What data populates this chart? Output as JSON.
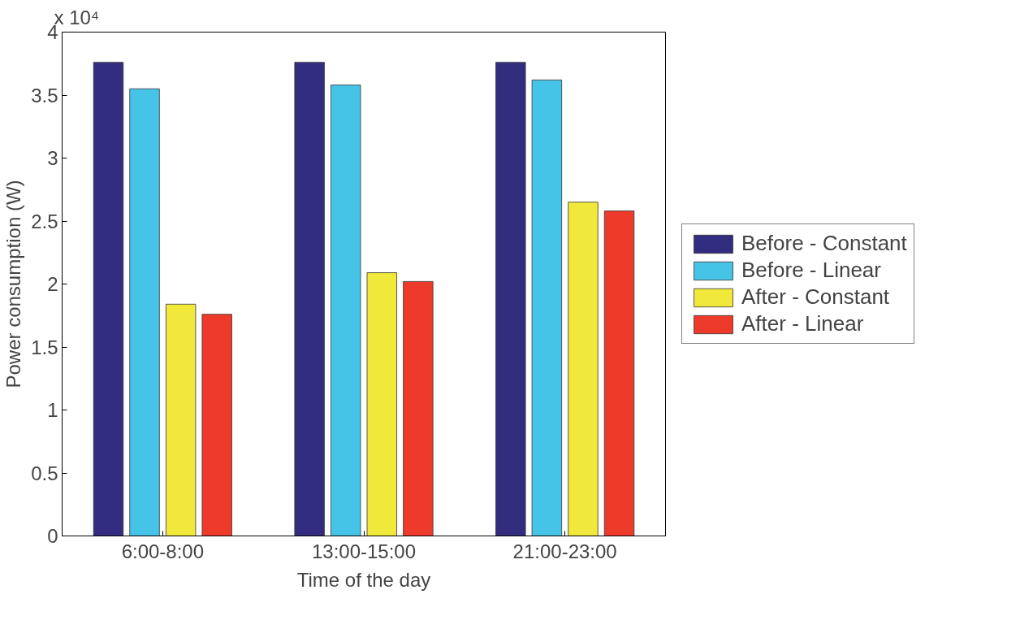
{
  "chart_data": {
    "type": "bar",
    "xlabel": "Time of the day",
    "ylabel": "Power consumption (W)",
    "categories": [
      "6:00-8:00",
      "13:00-15:00",
      "21:00-23:00"
    ],
    "series": [
      {
        "name": "Before - Constant",
        "color": "#332d7f",
        "values": [
          3.76,
          3.76,
          3.76
        ]
      },
      {
        "name": "Before - Linear",
        "color": "#45c4e8",
        "values": [
          3.55,
          3.58,
          3.62
        ]
      },
      {
        "name": "After - Constant",
        "color": "#f0e83a",
        "values": [
          1.84,
          2.09,
          2.65
        ]
      },
      {
        "name": "After - Linear",
        "color": "#ee3a2a",
        "values": [
          1.76,
          2.02,
          2.58
        ]
      }
    ],
    "ylim": [
      0,
      4
    ],
    "yticks": [
      0,
      0.5,
      1,
      1.5,
      2,
      2.5,
      3,
      3.5,
      4
    ],
    "annotations": [
      "x 10⁴"
    ],
    "grid": false,
    "legend": "right"
  }
}
